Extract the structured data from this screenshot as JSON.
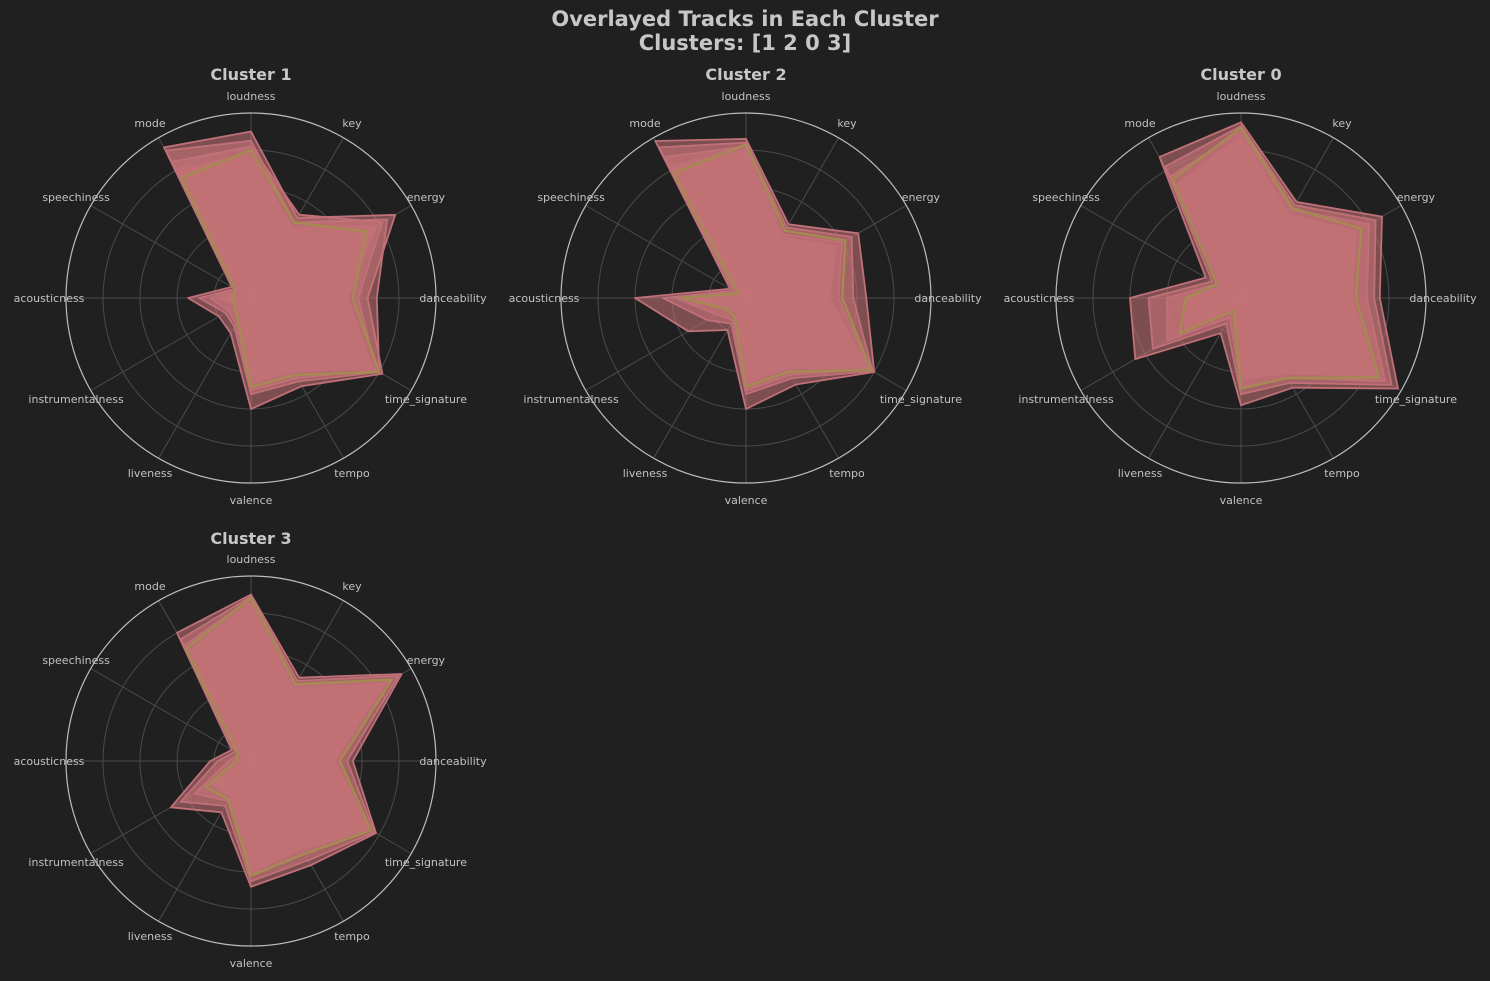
{
  "title_line1": "Overlayed Tracks in Each Cluster",
  "title_line2": "Clusters: [1 2 0 3]",
  "colors": {
    "background": "#202020",
    "grid": "#4a4a4a",
    "outer_ring": "#bdbdbd",
    "text": "#c7c7c7",
    "track_line": "#c07078",
    "track_fill": "#c87478",
    "centroid_line": "#a58a52"
  },
  "chart_data": [
    {
      "type": "radar",
      "title": "Cluster 1",
      "axes": [
        "loudness",
        "key",
        "energy",
        "danceability",
        "time_signature",
        "tempo",
        "valence",
        "liveness",
        "instrumentalness",
        "acousticness",
        "speechiness",
        "mode"
      ],
      "rlim": [
        0,
        1
      ],
      "grid_rings": [
        0.2,
        0.4,
        0.6,
        0.8
      ],
      "centroid": [
        0.8,
        0.47,
        0.72,
        0.55,
        0.8,
        0.48,
        0.48,
        0.14,
        0.1,
        0.1,
        0.1,
        0.75
      ],
      "series": [
        {
          "values": [
            0.9,
            0.5,
            0.9,
            0.63,
            0.82,
            0.55,
            0.6,
            0.22,
            0.2,
            0.34,
            0.12,
            0.94
          ]
        },
        {
          "values": [
            0.85,
            0.47,
            0.85,
            0.68,
            0.8,
            0.52,
            0.52,
            0.18,
            0.16,
            0.28,
            0.1,
            0.92
          ]
        },
        {
          "values": [
            0.82,
            0.52,
            0.82,
            0.58,
            0.78,
            0.5,
            0.5,
            0.16,
            0.14,
            0.22,
            0.1,
            0.85
          ]
        },
        {
          "values": [
            0.78,
            0.44,
            0.78,
            0.52,
            0.76,
            0.46,
            0.46,
            0.12,
            0.08,
            0.18,
            0.08,
            0.8
          ]
        }
      ]
    },
    {
      "type": "radar",
      "title": "Cluster 2",
      "axes": [
        "loudness",
        "key",
        "energy",
        "danceability",
        "time_signature",
        "tempo",
        "valence",
        "liveness",
        "instrumentalness",
        "acousticness",
        "speechiness",
        "mode"
      ],
      "rlim": [
        0,
        1
      ],
      "grid_rings": [
        0.2,
        0.4,
        0.6,
        0.8
      ],
      "centroid": [
        0.83,
        0.42,
        0.62,
        0.52,
        0.78,
        0.46,
        0.48,
        0.12,
        0.12,
        0.35,
        0.05,
        0.78
      ],
      "series": [
        {
          "values": [
            0.86,
            0.46,
            0.7,
            0.65,
            0.8,
            0.54,
            0.6,
            0.2,
            0.36,
            0.6,
            0.1,
            0.98
          ]
        },
        {
          "values": [
            0.84,
            0.44,
            0.66,
            0.58,
            0.79,
            0.5,
            0.52,
            0.16,
            0.24,
            0.45,
            0.08,
            0.94
          ]
        },
        {
          "values": [
            0.82,
            0.4,
            0.6,
            0.5,
            0.77,
            0.48,
            0.5,
            0.14,
            0.18,
            0.38,
            0.06,
            0.88
          ]
        },
        {
          "values": [
            0.8,
            0.38,
            0.56,
            0.45,
            0.76,
            0.44,
            0.46,
            0.1,
            0.1,
            0.3,
            0.05,
            0.82
          ]
        }
      ]
    },
    {
      "type": "radar",
      "title": "Cluster 0",
      "axes": [
        "loudness",
        "key",
        "energy",
        "danceability",
        "time_signature",
        "tempo",
        "valence",
        "liveness",
        "instrumentalness",
        "acousticness",
        "speechiness",
        "mode"
      ],
      "rlim": [
        0,
        1
      ],
      "grid_rings": [
        0.2,
        0.4,
        0.6,
        0.8
      ],
      "centroid": [
        0.92,
        0.56,
        0.75,
        0.62,
        0.86,
        0.5,
        0.49,
        0.08,
        0.38,
        0.3,
        0.15,
        0.74
      ],
      "series": [
        {
          "values": [
            0.95,
            0.6,
            0.88,
            0.75,
            0.98,
            0.56,
            0.58,
            0.22,
            0.66,
            0.6,
            0.22,
            0.88
          ]
        },
        {
          "values": [
            0.93,
            0.58,
            0.84,
            0.72,
            0.94,
            0.53,
            0.52,
            0.16,
            0.55,
            0.5,
            0.18,
            0.82
          ]
        },
        {
          "values": [
            0.9,
            0.55,
            0.8,
            0.68,
            0.9,
            0.5,
            0.48,
            0.12,
            0.46,
            0.4,
            0.15,
            0.76
          ]
        },
        {
          "values": [
            0.88,
            0.52,
            0.72,
            0.6,
            0.84,
            0.47,
            0.44,
            0.08,
            0.35,
            0.3,
            0.12,
            0.7
          ]
        }
      ]
    },
    {
      "type": "radar",
      "title": "Cluster 3",
      "axes": [
        "loudness",
        "key",
        "energy",
        "danceability",
        "time_signature",
        "tempo",
        "valence",
        "liveness",
        "instrumentalness",
        "acousticness",
        "speechiness",
        "mode"
      ],
      "rlim": [
        0,
        1
      ],
      "grid_rings": [
        0.2,
        0.4,
        0.6,
        0.8
      ],
      "centroid": [
        0.88,
        0.48,
        0.88,
        0.48,
        0.75,
        0.58,
        0.62,
        0.24,
        0.28,
        0.08,
        0.08,
        0.7
      ],
      "series": [
        {
          "values": [
            0.9,
            0.52,
            0.94,
            0.55,
            0.78,
            0.65,
            0.68,
            0.32,
            0.5,
            0.22,
            0.12,
            0.8
          ]
        },
        {
          "values": [
            0.89,
            0.5,
            0.92,
            0.52,
            0.77,
            0.62,
            0.65,
            0.28,
            0.44,
            0.18,
            0.1,
            0.76
          ]
        },
        {
          "values": [
            0.88,
            0.47,
            0.88,
            0.48,
            0.75,
            0.58,
            0.62,
            0.25,
            0.35,
            0.12,
            0.08,
            0.72
          ]
        },
        {
          "values": [
            0.86,
            0.45,
            0.84,
            0.45,
            0.74,
            0.55,
            0.6,
            0.22,
            0.25,
            0.08,
            0.06,
            0.68
          ]
        }
      ]
    }
  ]
}
